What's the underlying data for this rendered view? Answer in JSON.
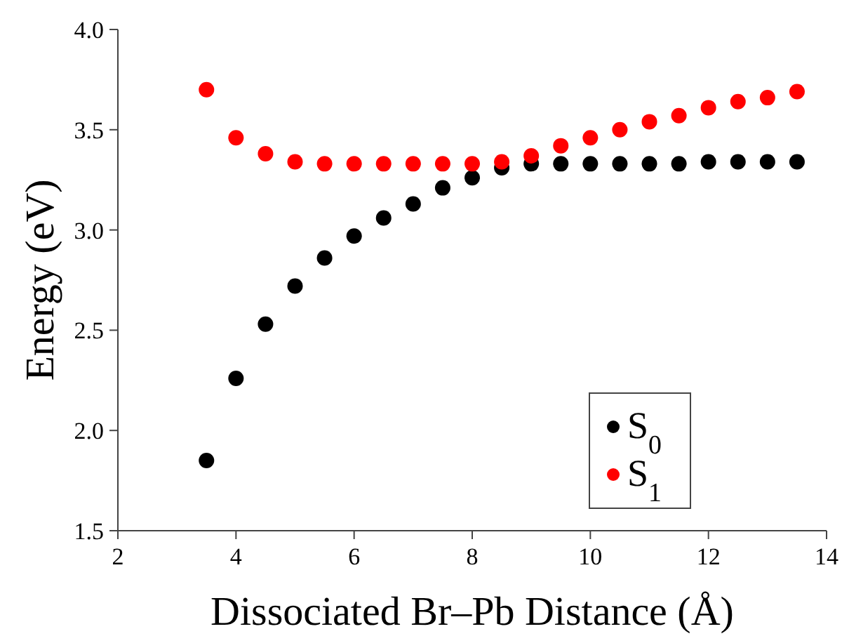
{
  "chart_data": {
    "type": "scatter",
    "xlabel": "Dissociated Br–Pb Distance (Å)",
    "ylabel": "Energy (eV)",
    "x": [
      3.5,
      4,
      4.5,
      5,
      5.5,
      6,
      6.5,
      7,
      7.5,
      8,
      8.5,
      9,
      9.5,
      10,
      10.5,
      11,
      11.5,
      12,
      12.5,
      13,
      13.5
    ],
    "series": [
      {
        "name": "S$_{0}$",
        "color": "#000000",
        "values": [
          1.85,
          2.26,
          2.53,
          2.72,
          2.86,
          2.97,
          3.06,
          3.13,
          3.21,
          3.26,
          3.31,
          3.33,
          3.33,
          3.33,
          3.33,
          3.33,
          3.33,
          3.34,
          3.34,
          3.34,
          3.34
        ]
      },
      {
        "name": "S$_{1}$",
        "color": "#ff0000",
        "values": [
          3.7,
          3.46,
          3.38,
          3.34,
          3.33,
          3.33,
          3.33,
          3.33,
          3.33,
          3.33,
          3.34,
          3.37,
          3.42,
          3.46,
          3.5,
          3.54,
          3.57,
          3.61,
          3.64,
          3.66,
          3.69
        ]
      }
    ],
    "xlim": [
      2,
      14
    ],
    "xticks": [
      2,
      4,
      6,
      8,
      10,
      12,
      14
    ],
    "ylim": [
      1.5,
      4.0
    ],
    "yticks": [
      {
        "value": 1.5,
        "label": "1.5"
      },
      {
        "value": 2.0,
        "label": "2.0"
      },
      {
        "value": 2.5,
        "label": "2.5"
      },
      {
        "value": 3.0,
        "label": "3.0"
      },
      {
        "value": 3.5,
        "label": "3.5"
      },
      {
        "value": 4.0,
        "label": "4.0"
      }
    ],
    "marker": "circle",
    "legend": "right",
    "grid": false
  }
}
